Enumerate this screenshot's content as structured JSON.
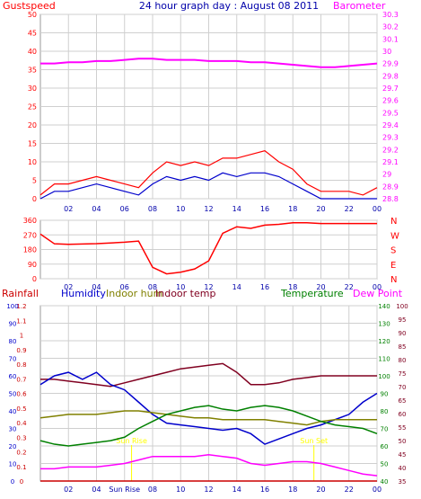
{
  "title": "24 hour graph day : August 08 2011",
  "colors": {
    "background": "#ffffff",
    "grid": "#cfcfcf",
    "gust": "#ff0000",
    "wind": "#0000cc",
    "barometer": "#ff00ff",
    "direction": "#ff0000",
    "rainfall": "#cc0000",
    "humidity": "#0000cc",
    "indoor_hum": "#808000",
    "indoor_temp": "#800020",
    "temperature": "#008000",
    "dew_point": "#ff00ff",
    "sun": "#ffff00"
  },
  "chart_data": [
    {
      "id": "wind",
      "type": "line",
      "left_axis_label": "Gustspeed",
      "right_axis_label": "Barometer",
      "x_ticks": [
        "02",
        "04",
        "06",
        "08",
        "10",
        "12",
        "14",
        "16",
        "18",
        "20",
        "22",
        "00"
      ],
      "ylim_left": [
        0,
        50
      ],
      "yticks_left": [
        0,
        5,
        10,
        15,
        20,
        25,
        30,
        35,
        40,
        45,
        50
      ],
      "ylim_right": [
        28.8,
        30.3
      ],
      "yticks_right": [
        "28.8",
        "28.9",
        "29",
        "29.1",
        "29.2",
        "29.3",
        "29.4",
        "29.5",
        "29.6",
        "29.7",
        "29.8",
        "29.9",
        "30",
        "30.1",
        "30.2",
        "30.3"
      ],
      "series": [
        {
          "key": "barometer",
          "axis": "right",
          "x": [
            0,
            1,
            2,
            3,
            4,
            5,
            6,
            7,
            8,
            9,
            10,
            11,
            12,
            13,
            14,
            15,
            16,
            17,
            18,
            19,
            20,
            21,
            22,
            23,
            24
          ],
          "y": [
            29.9,
            29.9,
            29.91,
            29.91,
            29.92,
            29.92,
            29.93,
            29.94,
            29.94,
            29.93,
            29.93,
            29.93,
            29.92,
            29.92,
            29.92,
            29.91,
            29.91,
            29.9,
            29.89,
            29.88,
            29.87,
            29.87,
            29.88,
            29.89,
            29.9
          ]
        },
        {
          "key": "gust",
          "axis": "left",
          "x": [
            0,
            1,
            2,
            3,
            4,
            5,
            6,
            7,
            8,
            9,
            10,
            11,
            12,
            13,
            14,
            15,
            16,
            17,
            18,
            19,
            20,
            21,
            22,
            23,
            24
          ],
          "y": [
            1,
            4,
            4,
            5,
            6,
            5,
            4,
            3,
            7,
            10,
            9,
            10,
            9,
            11,
            11,
            12,
            13,
            10,
            8,
            4,
            2,
            2,
            2,
            1,
            3
          ]
        },
        {
          "key": "wind",
          "axis": "left",
          "x": [
            0,
            1,
            2,
            3,
            4,
            5,
            6,
            7,
            8,
            9,
            10,
            11,
            12,
            13,
            14,
            15,
            16,
            17,
            18,
            19,
            20,
            21,
            22,
            23,
            24
          ],
          "y": [
            0,
            2,
            2,
            3,
            4,
            3,
            2,
            1,
            4,
            6,
            5,
            6,
            5,
            7,
            6,
            7,
            7,
            6,
            4,
            2,
            0,
            0,
            0,
            0,
            0
          ]
        }
      ]
    },
    {
      "id": "direction",
      "type": "line",
      "yticks": [
        0,
        90,
        180,
        270,
        360
      ],
      "ylim": [
        0,
        360
      ],
      "compass_labels": [
        "N",
        "W",
        "S",
        "E",
        "N"
      ],
      "x_ticks": [
        "02",
        "04",
        "06",
        "08",
        "10",
        "12",
        "14",
        "16",
        "18",
        "20",
        "22",
        "00"
      ],
      "series": [
        {
          "key": "direction",
          "x": [
            0,
            1,
            2,
            3,
            4,
            5,
            6,
            7,
            8,
            9,
            10,
            11,
            12,
            13,
            14,
            15,
            16,
            17,
            18,
            19,
            20,
            21,
            22,
            23,
            24
          ],
          "y": [
            275,
            215,
            212,
            214,
            216,
            220,
            225,
            232,
            70,
            30,
            40,
            60,
            110,
            280,
            320,
            310,
            330,
            335,
            345,
            345,
            340,
            340,
            340,
            340,
            340
          ]
        }
      ]
    },
    {
      "id": "temperature",
      "type": "line",
      "labels": [
        "Rainfall",
        "Humidity",
        "Indoor hum",
        "Indoor temp",
        "Temperature",
        "Dew Point"
      ],
      "x_ticks": [
        "02",
        "04",
        "Sun Rise",
        "08",
        "10",
        "12",
        "14",
        "16",
        "18",
        "20",
        "22",
        "00"
      ],
      "annotations": [
        "Sun Rise",
        "Sun Set"
      ],
      "axes": {
        "rain_ticks": [
          "0",
          "0.1",
          "0.2",
          "0.3",
          "0.4",
          "0.5",
          "0.6",
          "0.7",
          "0.8",
          "0.9",
          "1",
          "1.1",
          "1.2"
        ],
        "humidity_ticks": [
          "0",
          "10",
          "20",
          "30",
          "40",
          "50",
          "60",
          "70",
          "80",
          "90",
          "100"
        ],
        "temp_ticks": [
          "40",
          "50",
          "60",
          "70",
          "80",
          "90",
          "100",
          "110",
          "120",
          "130",
          "140"
        ],
        "dew_ticks": [
          "35",
          "40",
          "45",
          "50",
          "55",
          "60",
          "65",
          "70",
          "75",
          "80",
          "85",
          "90",
          "95",
          "100"
        ]
      },
      "ylim_humidity": [
        0,
        100
      ],
      "series": [
        {
          "key": "indoor_temp",
          "x": [
            0,
            1,
            2,
            3,
            4,
            5,
            6,
            7,
            8,
            9,
            10,
            11,
            12,
            13,
            14,
            15,
            16,
            17,
            18,
            19,
            20,
            21,
            22,
            23,
            24
          ],
          "y": [
            58,
            58,
            57,
            56,
            55,
            54,
            56,
            58,
            60,
            62,
            64,
            65,
            66,
            67,
            62,
            55,
            55,
            56,
            58,
            59,
            60,
            60,
            60,
            60,
            60
          ]
        },
        {
          "key": "humidity",
          "x": [
            0,
            1,
            2,
            3,
            4,
            5,
            6,
            7,
            8,
            9,
            10,
            11,
            12,
            13,
            14,
            15,
            16,
            17,
            18,
            19,
            20,
            21,
            22,
            23,
            24
          ],
          "y": [
            55,
            60,
            62,
            58,
            62,
            55,
            52,
            45,
            38,
            33,
            32,
            31,
            30,
            29,
            30,
            27,
            21,
            24,
            27,
            30,
            32,
            35,
            38,
            45,
            50
          ]
        },
        {
          "key": "indoor_hum",
          "x": [
            0,
            1,
            2,
            3,
            4,
            5,
            6,
            7,
            8,
            9,
            10,
            11,
            12,
            13,
            14,
            15,
            16,
            17,
            18,
            19,
            20,
            21,
            22,
            23,
            24
          ],
          "y": [
            36,
            37,
            38,
            38,
            38,
            39,
            40,
            40,
            39,
            38,
            37,
            36,
            36,
            35,
            35,
            35,
            35,
            34,
            33,
            32,
            34,
            35,
            35,
            35,
            35
          ]
        },
        {
          "key": "temperature",
          "x": [
            0,
            1,
            2,
            3,
            4,
            5,
            6,
            7,
            8,
            9,
            10,
            11,
            12,
            13,
            14,
            15,
            16,
            17,
            18,
            19,
            20,
            21,
            22,
            23,
            24
          ],
          "y": [
            23,
            21,
            20,
            21,
            22,
            23,
            25,
            30,
            34,
            38,
            40,
            42,
            43,
            41,
            40,
            42,
            43,
            42,
            40,
            37,
            34,
            32,
            31,
            30,
            27
          ]
        },
        {
          "key": "dew_point",
          "x": [
            0,
            1,
            2,
            3,
            4,
            5,
            6,
            7,
            8,
            9,
            10,
            11,
            12,
            13,
            14,
            15,
            16,
            17,
            18,
            19,
            20,
            21,
            22,
            23,
            24
          ],
          "y": [
            7,
            7,
            8,
            8,
            8,
            9,
            10,
            12,
            14,
            14,
            14,
            14,
            15,
            14,
            13,
            10,
            9,
            10,
            11,
            11,
            10,
            8,
            6,
            4,
            3
          ]
        },
        {
          "key": "rainfall",
          "x": [
            0,
            24
          ],
          "y": [
            0,
            0
          ]
        }
      ]
    }
  ]
}
